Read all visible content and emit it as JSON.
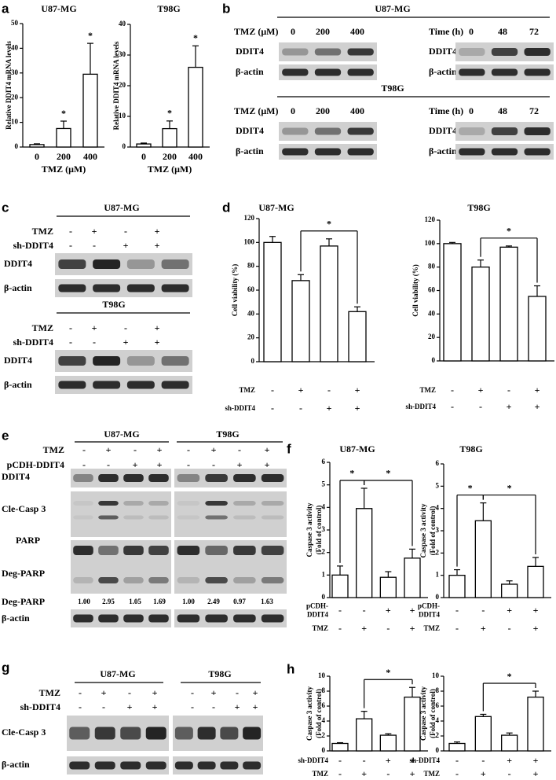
{
  "panel_labels": [
    "a",
    "b",
    "c",
    "d",
    "e",
    "f",
    "g",
    "h"
  ],
  "chart_data": [
    {
      "type": "bar",
      "title": "U87-MG",
      "ylabel": [
        "Relative DDIT4 mRNA levels"
      ],
      "xlabel": "TMZ (μM)",
      "categories": [
        "0",
        "200",
        "400"
      ],
      "values": [
        1,
        7.5,
        29.5
      ],
      "errors": [
        0.3,
        3,
        12.5
      ],
      "markers": [
        null,
        "*",
        "*"
      ],
      "ylim": [
        0,
        50
      ],
      "yticks": [
        0,
        10,
        20,
        30,
        40,
        50
      ]
    },
    {
      "type": "bar",
      "title": "T98G",
      "ylabel": [
        "Relative DDIT4 mRNA levels"
      ],
      "xlabel": "TMZ (μM)",
      "categories": [
        "0",
        "200",
        "400"
      ],
      "values": [
        1,
        6,
        26
      ],
      "errors": [
        0.3,
        2.5,
        7
      ],
      "markers": [
        null,
        "*",
        "*"
      ],
      "ylim": [
        0,
        40
      ],
      "yticks": [
        0,
        10,
        20,
        30,
        40
      ]
    },
    {
      "type": "bar",
      "title": "U87-MG",
      "ylabel": [
        "Cell viability (%)"
      ],
      "values": [
        100,
        68,
        97,
        42
      ],
      "errors": [
        5,
        5,
        6,
        4
      ],
      "ylim": [
        0,
        120
      ],
      "yticks": [
        0,
        20,
        40,
        60,
        80,
        100,
        120
      ],
      "conditions": [
        {
          "name": [
            "TMZ"
          ],
          "signs": [
            "-",
            "+",
            "-",
            "+"
          ]
        },
        {
          "name": [
            "sh-DDIT4"
          ],
          "signs": [
            "-",
            "-",
            "+",
            "+"
          ]
        }
      ],
      "brackets": [
        {
          "bars": [
            1,
            3
          ],
          "label": "*"
        }
      ]
    },
    {
      "type": "bar",
      "title": "T98G",
      "ylabel": [
        "Cell viability (%)"
      ],
      "values": [
        100,
        80,
        97,
        55
      ],
      "errors": [
        1,
        6,
        1,
        9
      ],
      "ylim": [
        0,
        120
      ],
      "yticks": [
        0,
        20,
        40,
        60,
        80,
        100,
        120
      ],
      "conditions": [
        {
          "name": [
            "TMZ"
          ],
          "signs": [
            "-",
            "+",
            "-",
            "+"
          ]
        },
        {
          "name": [
            "sh-DDIT4"
          ],
          "signs": [
            "-",
            "-",
            "+",
            "+"
          ]
        }
      ],
      "brackets": [
        {
          "bars": [
            1,
            3
          ],
          "label": "*"
        }
      ]
    },
    {
      "type": "bar",
      "title": "U87-MG",
      "ylabel": [
        "Caspase 3 activity",
        "(Fold of control)"
      ],
      "values": [
        1,
        3.95,
        0.9,
        1.75
      ],
      "errors": [
        0.4,
        0.9,
        0.25,
        0.4
      ],
      "ylim": [
        0,
        6
      ],
      "yticks": [
        0,
        1,
        2,
        3,
        4,
        5,
        6
      ],
      "conditions": [
        {
          "name": [
            "pCDH-",
            "DDIT4"
          ],
          "signs": [
            "-",
            "-",
            "+",
            "+"
          ]
        },
        {
          "name": [
            "TMZ"
          ],
          "signs": [
            "-",
            "+",
            "-",
            "+"
          ]
        }
      ],
      "brackets": [
        {
          "bars": [
            0,
            1
          ],
          "label": "*"
        },
        {
          "bars": [
            1,
            3
          ],
          "label": "*"
        }
      ]
    },
    {
      "type": "bar",
      "title": "T98G",
      "ylabel": [
        "Caspase 3 activity",
        "(Fold of control)"
      ],
      "values": [
        1,
        3.45,
        0.6,
        1.4
      ],
      "errors": [
        0.25,
        0.8,
        0.15,
        0.4
      ],
      "ylim": [
        0,
        6
      ],
      "yticks": [
        0,
        1,
        2,
        3,
        4,
        5,
        6
      ],
      "conditions": [
        {
          "name": [
            "pCDH-",
            "DDIT4"
          ],
          "signs": [
            "-",
            "-",
            "+",
            "+"
          ]
        },
        {
          "name": [
            "TMZ"
          ],
          "signs": [
            "-",
            "+",
            "-",
            "+"
          ]
        }
      ],
      "brackets": [
        {
          "bars": [
            0,
            1
          ],
          "label": "*"
        },
        {
          "bars": [
            1,
            3
          ],
          "label": "*"
        }
      ]
    },
    {
      "type": "bar",
      "ylabel": [
        "Caspase 3 activity",
        "(Fold of control)"
      ],
      "values": [
        1,
        4.3,
        2.1,
        7.2
      ],
      "errors": [
        0.1,
        1,
        0.2,
        1.3
      ],
      "ylim": [
        0,
        10
      ],
      "yticks": [
        0,
        2,
        4,
        6,
        8,
        10
      ],
      "conditions": [
        {
          "name": [
            "sh-DDIT4"
          ],
          "signs": [
            "-",
            "-",
            "+",
            "+"
          ]
        },
        {
          "name": [
            "TMZ"
          ],
          "signs": [
            "-",
            "+",
            "-",
            "+"
          ]
        }
      ],
      "brackets": [
        {
          "bars": [
            1,
            3
          ],
          "label": "*"
        }
      ]
    },
    {
      "type": "bar",
      "ylabel": [
        "Caspase 3 activity",
        "(Fold of control)"
      ],
      "values": [
        1,
        4.6,
        2.1,
        7.2
      ],
      "errors": [
        0.2,
        0.3,
        0.3,
        0.8
      ],
      "ylim": [
        0,
        10
      ],
      "yticks": [
        0,
        2,
        4,
        6,
        8,
        10
      ],
      "conditions": [
        {
          "name": [
            "sh-DDIT4"
          ],
          "signs": [
            "-",
            "-",
            "+",
            "+"
          ]
        },
        {
          "name": [
            "TMZ"
          ],
          "signs": [
            "-",
            "+",
            "-",
            "+"
          ]
        }
      ],
      "brackets": [
        {
          "bars": [
            1,
            3
          ],
          "label": "*"
        }
      ]
    }
  ],
  "blots": {
    "b": {
      "groups": [
        {
          "title": "U87-MG",
          "dose_label": "TMZ (μM)",
          "doses": [
            "0",
            "200",
            "400"
          ],
          "time_label": "Time (h)",
          "times": [
            "0",
            "48",
            "72"
          ],
          "rows": [
            "DDIT4",
            "β-actin"
          ]
        },
        {
          "title": "T98G",
          "dose_label": "TMZ (μM)",
          "doses": [
            "0",
            "200",
            "400"
          ],
          "time_label": "Time (h)",
          "times": [
            "0",
            "48",
            "72"
          ],
          "rows": [
            "DDIT4",
            "β-actin"
          ]
        }
      ]
    },
    "c": {
      "groups": [
        {
          "title": "U87-MG",
          "conditions": [
            {
              "name": "TMZ",
              "signs": [
                "-",
                "+",
                "-",
                "+"
              ]
            },
            {
              "name": "sh-DDIT4",
              "signs": [
                "-",
                "-",
                "+",
                "+"
              ]
            }
          ],
          "rows": [
            "DDIT4",
            "β-actin"
          ]
        },
        {
          "title": "T98G",
          "conditions": [
            {
              "name": "TMZ",
              "signs": [
                "-",
                "+",
                "-",
                "+"
              ]
            },
            {
              "name": "sh-DDIT4",
              "signs": [
                "-",
                "-",
                "+",
                "+"
              ]
            }
          ],
          "rows": [
            "DDIT4",
            "β-actin"
          ]
        }
      ]
    },
    "e": {
      "titles": [
        "U87-MG",
        "T98G"
      ],
      "conditions": [
        {
          "name": "TMZ",
          "signs": [
            "-",
            "+",
            "-",
            "+",
            "-",
            "+",
            "-",
            "+"
          ]
        },
        {
          "name": "pCDH-DDIT4",
          "signs": [
            "-",
            "-",
            "+",
            "+",
            "-",
            "-",
            "+",
            "+"
          ]
        }
      ],
      "rows": [
        "DDIT4",
        "Cle-Casp 3",
        "PARP",
        "Deg-PARP"
      ],
      "quant": {
        "name": "Deg-PARP",
        "values": [
          "1.00",
          "2.95",
          "1.05",
          "1.69",
          "1.00",
          "2.49",
          "0.97",
          "1.63"
        ]
      },
      "loading": "β-actin"
    },
    "g": {
      "titles": [
        "U87-MG",
        "T98G"
      ],
      "conditions": [
        {
          "name": "TMZ",
          "signs": [
            "-",
            "+",
            "-",
            "+",
            "-",
            "+",
            "-",
            "+"
          ]
        },
        {
          "name": "sh-DDIT4",
          "signs": [
            "-",
            "-",
            "+",
            "+",
            "-",
            "-",
            "+",
            "+"
          ]
        }
      ],
      "rows": [
        "Cle-Casp 3",
        "β-actin"
      ]
    }
  }
}
